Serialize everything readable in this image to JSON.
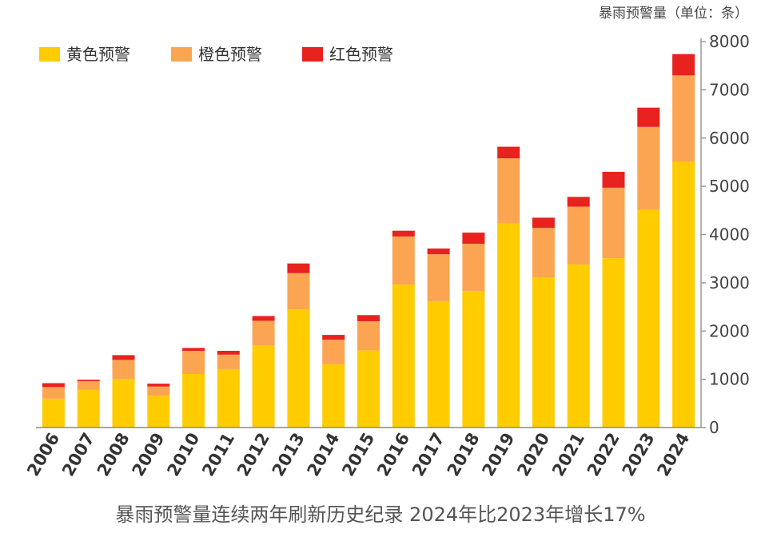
{
  "chart_data": {
    "type": "bar",
    "stacked": true,
    "categories": [
      "2006",
      "2007",
      "2008",
      "2009",
      "2010",
      "2011",
      "2012",
      "2013",
      "2014",
      "2015",
      "2016",
      "2017",
      "2018",
      "2019",
      "2020",
      "2021",
      "2022",
      "2023",
      "2024"
    ],
    "series": [
      {
        "name": "黄色预警",
        "color": "#FFCC00",
        "values": [
          600,
          780,
          1010,
          660,
          1110,
          1210,
          1700,
          2450,
          1310,
          1600,
          2960,
          2620,
          2830,
          4230,
          3110,
          3380,
          3510,
          4510,
          5510
        ]
      },
      {
        "name": "橙色预警",
        "color": "#FBA552",
        "values": [
          240,
          180,
          390,
          190,
          480,
          300,
          510,
          750,
          510,
          600,
          1000,
          970,
          980,
          1350,
          1030,
          1200,
          1460,
          1720,
          1790
        ]
      },
      {
        "name": "红色预警",
        "color": "#E8221F",
        "values": [
          80,
          30,
          100,
          60,
          60,
          80,
          100,
          200,
          100,
          130,
          120,
          120,
          230,
          240,
          210,
          200,
          330,
          400,
          440
        ]
      }
    ],
    "ylim": [
      0,
      8000
    ],
    "yticks": [
      0,
      1000,
      2000,
      3000,
      4000,
      5000,
      6000,
      7000,
      8000
    ],
    "y_axis_position": "right",
    "legend_position": "top-left",
    "grid": false,
    "ylabel": "暴雨预警量（单位：条）",
    "title": "暴雨预警量连续两年刷新历史纪录  2024年比2023年增长17%"
  }
}
